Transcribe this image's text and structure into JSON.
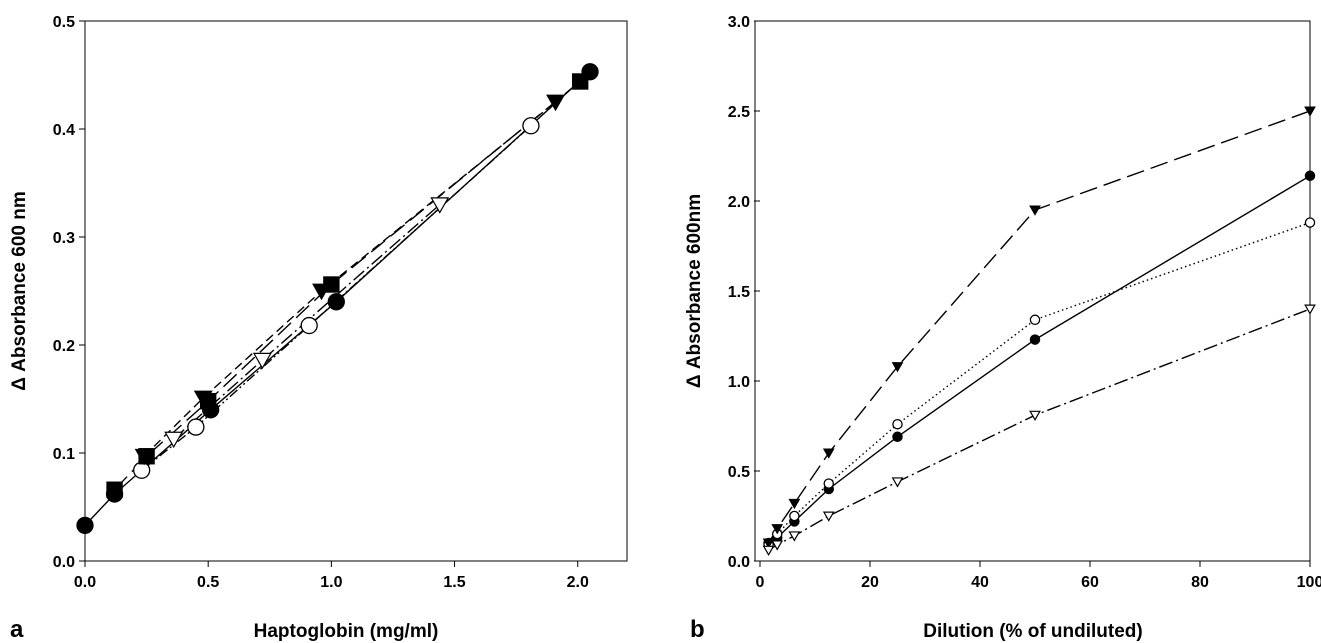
{
  "chart_data": [
    {
      "panel_label": "a",
      "type": "line",
      "xlabel": "Haptoglobin (mg/ml)",
      "ylabel": "Δ Absorbance 600 nm",
      "xlim": [
        0,
        2.2
      ],
      "ylim": [
        0,
        0.5
      ],
      "xticks": [
        "0.0",
        "0.5",
        "1.0",
        "1.5",
        "2.0"
      ],
      "yticks": [
        "0.0",
        "0.1",
        "0.2",
        "0.3",
        "0.4",
        "0.5"
      ],
      "grid": false,
      "legend": "none",
      "series": [
        {
          "marker": "filled-circle",
          "line": "solid",
          "x": [
            0,
            0.12,
            0.51,
            1.02,
            2.05
          ],
          "y": [
            0.033,
            0.062,
            0.14,
            0.24,
            0.453
          ]
        },
        {
          "marker": "open-circle",
          "line": "dash-dot-dot",
          "x": [
            0.23,
            0.45,
            0.91,
            1.81
          ],
          "y": [
            0.084,
            0.124,
            0.218,
            0.403
          ]
        },
        {
          "marker": "filled-square",
          "line": "long-dash",
          "x": [
            0.12,
            0.25,
            0.5,
            1.0,
            2.01
          ],
          "y": [
            0.066,
            0.097,
            0.148,
            0.256,
            0.444
          ]
        },
        {
          "marker": "filled-triangle-down",
          "line": "dashed",
          "x": [
            0.24,
            0.48,
            0.96,
            1.91
          ],
          "y": [
            0.097,
            0.151,
            0.25,
            0.425
          ]
        },
        {
          "marker": "open-triangle-down",
          "line": "dash-dot",
          "x": [
            0.36,
            0.72,
            1.44
          ],
          "y": [
            0.113,
            0.186,
            0.33
          ]
        }
      ]
    },
    {
      "panel_label": "b",
      "type": "line",
      "xlabel": "Dilution (% of undiluted)",
      "ylabel": "Δ Absorbance 600nm",
      "xlim": [
        0,
        100
      ],
      "ylim": [
        0,
        3.0
      ],
      "xticks": [
        "0",
        "20",
        "40",
        "60",
        "80",
        "100"
      ],
      "yticks": [
        "0.0",
        "0.5",
        "1.0",
        "1.5",
        "2.0",
        "2.5",
        "3.0"
      ],
      "grid": false,
      "legend": "none",
      "series": [
        {
          "marker": "filled-circle",
          "line": "solid",
          "x": [
            1.56,
            3.13,
            6.25,
            12.5,
            25,
            50,
            100
          ],
          "y": [
            0.1,
            0.13,
            0.22,
            0.4,
            0.69,
            1.23,
            2.14
          ]
        },
        {
          "marker": "open-circle",
          "line": "dotted",
          "x": [
            1.56,
            3.13,
            6.25,
            12.5,
            25,
            50,
            100
          ],
          "y": [
            0.09,
            0.15,
            0.25,
            0.43,
            0.76,
            1.34,
            1.88
          ]
        },
        {
          "marker": "filled-triangle-down",
          "line": "long-dash",
          "x": [
            1.56,
            3.13,
            6.25,
            12.5,
            25,
            50,
            100
          ],
          "y": [
            0.1,
            0.18,
            0.32,
            0.6,
            1.08,
            1.95,
            2.5
          ]
        },
        {
          "marker": "open-triangle-down",
          "line": "dash-dot",
          "x": [
            1.56,
            3.13,
            6.25,
            12.5,
            25,
            50,
            100
          ],
          "y": [
            0.06,
            0.09,
            0.14,
            0.25,
            0.44,
            0.81,
            1.4
          ]
        }
      ]
    }
  ]
}
